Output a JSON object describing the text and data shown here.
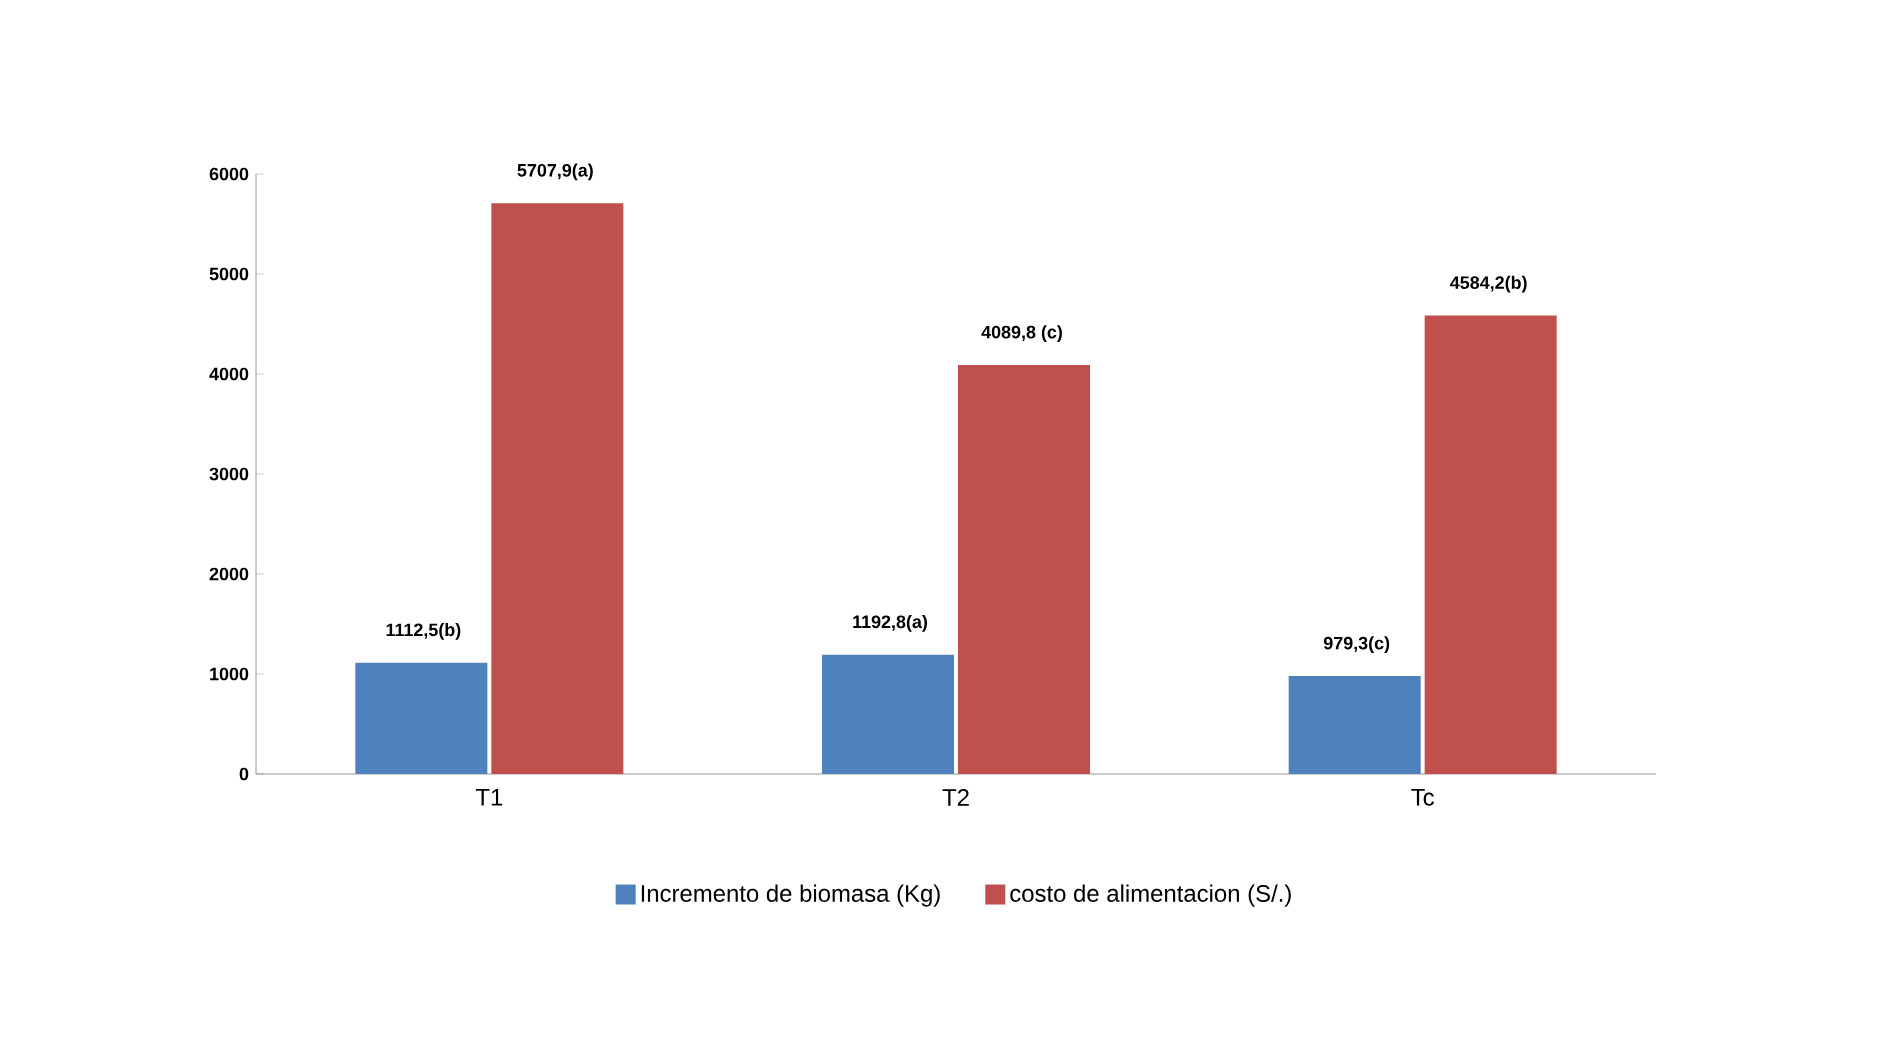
{
  "chart_data": {
    "type": "bar",
    "categories": [
      "T1",
      "T2",
      "Tc"
    ],
    "series": [
      {
        "name": "Incremento de biomasa (Kg)",
        "color": "#4f81bd",
        "values": [
          1112.5,
          1192.8,
          979.3
        ],
        "value_labels": [
          "1112,5(b)",
          "1192,8(a)",
          "979,3(c)"
        ]
      },
      {
        "name": "costo de alimentacion (S/.)",
        "color": "#c0504d",
        "values": [
          5707.9,
          4089.8,
          4584.2
        ],
        "value_labels": [
          "5707,9(a)",
          "4089,8 (c)",
          "4584,2(b)"
        ]
      }
    ],
    "ylim": [
      0,
      6000
    ],
    "yticks": [
      0,
      1000,
      2000,
      3000,
      4000,
      5000,
      6000
    ],
    "grid": false,
    "legend": "bottom"
  }
}
